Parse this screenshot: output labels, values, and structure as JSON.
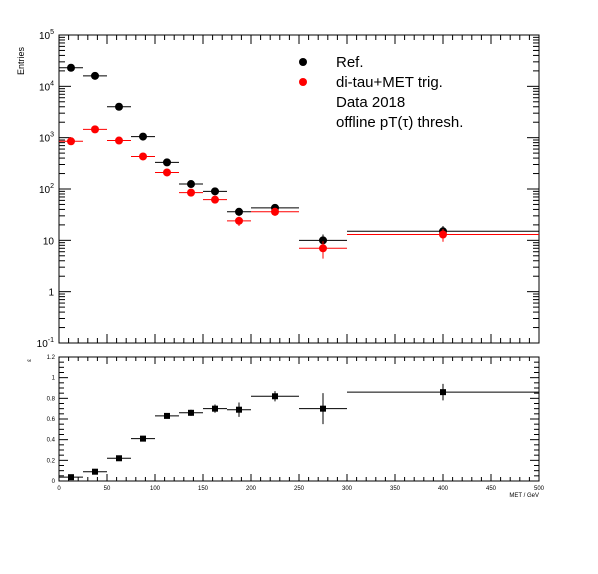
{
  "chart_data": [
    {
      "type": "scatter",
      "title": "",
      "xlabel": "",
      "ylabel": "Entries",
      "xlim": [
        0,
        500
      ],
      "ylim": [
        0.1,
        100000
      ],
      "yscale": "log",
      "grid": false,
      "legend_position": "top-right",
      "y_ticks": [
        {
          "value": 100000,
          "base": "10",
          "exp": "5"
        },
        {
          "value": 10000,
          "base": "10",
          "exp": "4"
        },
        {
          "value": 1000,
          "base": "10",
          "exp": "3"
        },
        {
          "value": 100,
          "base": "10",
          "exp": "2"
        },
        {
          "value": 10,
          "base": "10",
          "exp": ""
        },
        {
          "value": 1,
          "base": "1",
          "exp": ""
        },
        {
          "value": 0.1,
          "base": "10",
          "exp": "-1"
        }
      ],
      "legend": [
        {
          "label": "Ref.",
          "color": "#000000",
          "marker": "circle"
        },
        {
          "label": "di-tau+MET trig.",
          "color": "#ff0000",
          "marker": "circle"
        },
        {
          "label": "Data 2018",
          "color": "",
          "marker": ""
        },
        {
          "label": "offline pT(τ) thresh.",
          "color": "",
          "marker": ""
        }
      ],
      "series": [
        {
          "name": "Ref.",
          "color": "#000000",
          "points": [
            {
              "x": 12.5,
              "xlo": 0,
              "xhi": 25,
              "y": 23000,
              "yerr": 0
            },
            {
              "x": 37.5,
              "xlo": 25,
              "xhi": 50,
              "y": 16000,
              "yerr": 0
            },
            {
              "x": 62.5,
              "xlo": 50,
              "xhi": 75,
              "y": 4000,
              "yerr": 0
            },
            {
              "x": 87.5,
              "xlo": 75,
              "xhi": 100,
              "y": 1050,
              "yerr": 0
            },
            {
              "x": 112.5,
              "xlo": 100,
              "xhi": 125,
              "y": 330,
              "yerr": 0
            },
            {
              "x": 137.5,
              "xlo": 125,
              "xhi": 150,
              "y": 125,
              "yerr": 10
            },
            {
              "x": 162.5,
              "xlo": 150,
              "xhi": 175,
              "y": 90,
              "yerr": 9
            },
            {
              "x": 187.5,
              "xlo": 175,
              "xhi": 200,
              "y": 36,
              "yerr": 6
            },
            {
              "x": 225,
              "xlo": 200,
              "xhi": 250,
              "y": 43,
              "yerr": 6.5
            },
            {
              "x": 275,
              "xlo": 250,
              "xhi": 300,
              "y": 10,
              "yerr": 3
            },
            {
              "x": 400,
              "xlo": 300,
              "xhi": 500,
              "y": 15,
              "yerr": 4
            }
          ]
        },
        {
          "name": "di-tau+MET trig.",
          "color": "#ff0000",
          "points": [
            {
              "x": 12.5,
              "xlo": 0,
              "xhi": 25,
              "y": 850,
              "yerr": 0
            },
            {
              "x": 37.5,
              "xlo": 25,
              "xhi": 50,
              "y": 1450,
              "yerr": 0
            },
            {
              "x": 62.5,
              "xlo": 50,
              "xhi": 75,
              "y": 880,
              "yerr": 0
            },
            {
              "x": 87.5,
              "xlo": 75,
              "xhi": 100,
              "y": 430,
              "yerr": 0
            },
            {
              "x": 112.5,
              "xlo": 100,
              "xhi": 125,
              "y": 210,
              "yerr": 0
            },
            {
              "x": 137.5,
              "xlo": 125,
              "xhi": 150,
              "y": 85,
              "yerr": 9
            },
            {
              "x": 162.5,
              "xlo": 150,
              "xhi": 175,
              "y": 62,
              "yerr": 8
            },
            {
              "x": 187.5,
              "xlo": 175,
              "xhi": 200,
              "y": 24,
              "yerr": 5
            },
            {
              "x": 225,
              "xlo": 200,
              "xhi": 250,
              "y": 36,
              "yerr": 6
            },
            {
              "x": 275,
              "xlo": 250,
              "xhi": 300,
              "y": 7,
              "yerr": 2.6
            },
            {
              "x": 400,
              "xlo": 300,
              "xhi": 500,
              "y": 13,
              "yerr": 3.6
            }
          ]
        }
      ]
    },
    {
      "type": "scatter",
      "title": "",
      "xlabel": "MET / GeV",
      "ylabel": "ε",
      "xlim": [
        0,
        500
      ],
      "ylim": [
        0,
        1.2
      ],
      "yscale": "linear",
      "grid": false,
      "x_ticks": [
        0,
        50,
        100,
        150,
        200,
        250,
        300,
        350,
        400,
        450,
        500
      ],
      "y_ticks": [
        0,
        0.2,
        0.4,
        0.6,
        0.8,
        1,
        1.2
      ],
      "series": [
        {
          "name": "",
          "color": "#000000",
          "points": [
            {
              "x": 12.5,
              "xlo": 0,
              "xhi": 25,
              "y": 0.037,
              "yerr": 0.005
            },
            {
              "x": 37.5,
              "xlo": 25,
              "xhi": 50,
              "y": 0.09,
              "yerr": 0.005
            },
            {
              "x": 62.5,
              "xlo": 50,
              "xhi": 75,
              "y": 0.22,
              "yerr": 0.008
            },
            {
              "x": 87.5,
              "xlo": 75,
              "xhi": 100,
              "y": 0.41,
              "yerr": 0.015
            },
            {
              "x": 112.5,
              "xlo": 100,
              "xhi": 125,
              "y": 0.63,
              "yerr": 0.02
            },
            {
              "x": 137.5,
              "xlo": 125,
              "xhi": 150,
              "y": 0.66,
              "yerr": 0.03
            },
            {
              "x": 162.5,
              "xlo": 150,
              "xhi": 175,
              "y": 0.7,
              "yerr": 0.04
            },
            {
              "x": 187.5,
              "xlo": 175,
              "xhi": 200,
              "y": 0.69,
              "yerr": 0.07
            },
            {
              "x": 225,
              "xlo": 200,
              "xhi": 250,
              "y": 0.82,
              "yerr": 0.05
            },
            {
              "x": 275,
              "xlo": 250,
              "xhi": 300,
              "y": 0.7,
              "yerr": 0.15
            },
            {
              "x": 400,
              "xlo": 300,
              "xhi": 500,
              "y": 0.86,
              "yerr": 0.08
            }
          ]
        }
      ]
    }
  ]
}
